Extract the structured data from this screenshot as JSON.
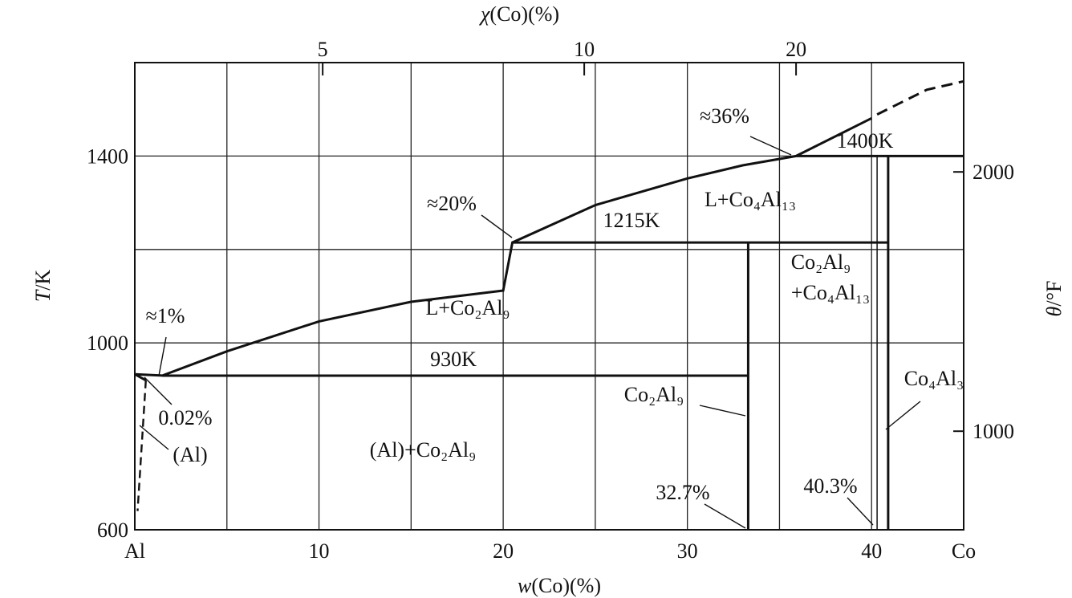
{
  "chart_data": {
    "type": "line",
    "title": "",
    "bottom_axis": {
      "label_var": "w",
      "label_rest": "(Co)(%)",
      "start_label": "Al",
      "end_label": "Co",
      "range": [
        0,
        45
      ],
      "ticks": [
        "10",
        "20",
        "30",
        "40"
      ]
    },
    "top_axis": {
      "label_var": "χ",
      "label_rest": "(Co)(%)",
      "ticks": [
        {
          "label": "5",
          "w": 10.2
        },
        {
          "label": "10",
          "w": 24.4
        },
        {
          "label": "20",
          "w": 35.9
        }
      ]
    },
    "left_axis": {
      "label_var": "T",
      "label_rest": "/K",
      "range": [
        600,
        1600
      ],
      "ticks": [
        "600",
        "1000",
        "1400"
      ]
    },
    "right_axis": {
      "label_var": "θ",
      "label_rest": "/°F",
      "ticks": [
        {
          "label": "1000",
          "T": 811
        },
        {
          "label": "2000",
          "T": 1366
        }
      ]
    },
    "grid_x": [
      5,
      10,
      15,
      20,
      25,
      30,
      35,
      40,
      45
    ],
    "grid_y": [
      1000,
      1200,
      1400,
      1600
    ],
    "liquidus": [
      [
        0,
        933
      ],
      [
        1.5,
        930
      ],
      [
        5,
        982
      ],
      [
        10,
        1046
      ],
      [
        15,
        1088
      ],
      [
        20,
        1112
      ],
      [
        20.5,
        1215
      ],
      [
        25,
        1295
      ],
      [
        30,
        1352
      ],
      [
        33,
        1380
      ],
      [
        35.9,
        1400
      ],
      [
        40,
        1481
      ],
      [
        42,
        1516
      ],
      [
        45,
        1560
      ]
    ],
    "liquidus_dashed": [
      [
        40.3,
        1489
      ],
      [
        43,
        1542
      ],
      [
        45,
        1560
      ]
    ],
    "isotherms": [
      {
        "label": "930K",
        "T": 930,
        "from": 1.5,
        "to": 33.3
      },
      {
        "label": "1215K",
        "T": 1215,
        "from": 20.5,
        "to": 40.9
      },
      {
        "label": "1400K",
        "T": 1400,
        "from": 35.9,
        "to": 45
      }
    ],
    "phase_lines": [
      {
        "w": 33.3,
        "from": 600,
        "to": 1215
      },
      {
        "w": 40.9,
        "from": 600,
        "to": 1400
      },
      {
        "w": 40.3,
        "from": 600,
        "to": 1400
      }
    ],
    "region_labels": {
      "liq_co2al9": "L+Co₂Al₉",
      "liq_co4al13": "L+Co₄Al₁₃",
      "co2al9_co4al13_top": "Co₂Al₉",
      "co2al9_co4al13_bottom": "+Co₄Al₁₃",
      "al_co2al9": "(Al)+Co₂Al₉",
      "al": "(Al)",
      "co2al9": "Co₂Al₉",
      "co4al3": "Co₄Al₃"
    },
    "annotations": {
      "pct_1": "≈1%",
      "pct_20": "≈20%",
      "pct_36": "≈36%",
      "pct_002": "0.02%",
      "pct_327": "32.7%",
      "pct_403": "40.3%"
    }
  }
}
